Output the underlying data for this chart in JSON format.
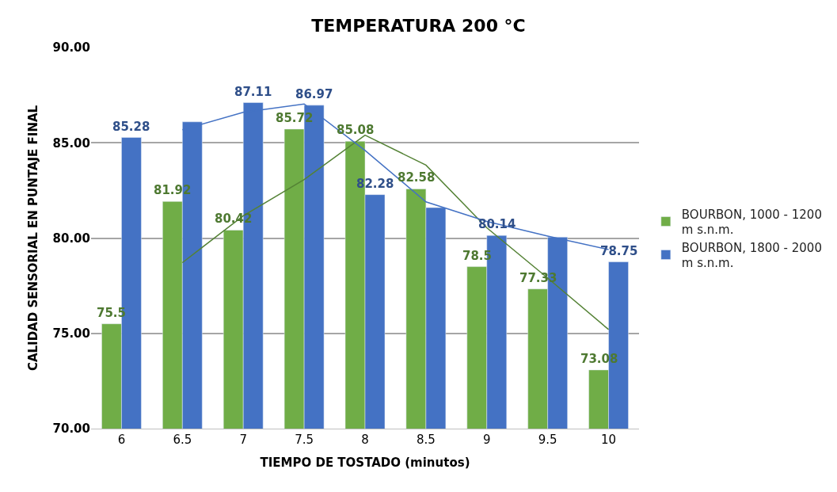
{
  "chart_data": {
    "type": "bar",
    "title": "TEMPERATURA 200 °C",
    "xlabel": "TIEMPO DE TOSTADO (minutos)",
    "ylabel": "CALIDAD SENSORIAL EN PUNTAJE FINAL",
    "categories": [
      "6",
      "6.5",
      "7",
      "7.5",
      "8",
      "8.5",
      "9",
      "9.5",
      "10"
    ],
    "series": [
      {
        "name": "BOURBON, 1000 - 1200 m s.n.m.",
        "color": "#70ad47",
        "values": [
          75.5,
          81.92,
          80.42,
          85.72,
          85.08,
          82.58,
          78.5,
          77.33,
          73.08
        ],
        "value_labels": [
          "75.5",
          "81.92",
          "80.42",
          "85.72",
          "85.08",
          "82.58",
          "78.5",
          "77.33",
          "73.08"
        ]
      },
      {
        "name": "BOURBON, 1800 - 2000 m s.n.m.",
        "color": "#4472c4",
        "values": [
          85.28,
          86.1,
          87.11,
          86.97,
          82.28,
          81.6,
          80.14,
          80.05,
          78.75
        ],
        "value_labels": [
          "85.28",
          null,
          "87.11",
          "86.97",
          "82.28",
          null,
          "80.14",
          null,
          "78.75"
        ]
      },
      {
        "type": "line",
        "color": "#548235",
        "values": [
          null,
          78.71,
          81.17,
          83.07,
          85.4,
          83.83,
          80.54,
          77.9,
          75.2
        ]
      },
      {
        "type": "line",
        "color": "#4472c4",
        "values": [
          null,
          85.69,
          86.6,
          87.04,
          84.6,
          81.9,
          80.87,
          80.1,
          79.4
        ]
      }
    ],
    "ylim": [
      70,
      90
    ],
    "yticks": [
      {
        "value": 70,
        "label": "70.00"
      },
      {
        "value": 75,
        "label": "75.00"
      },
      {
        "value": 80,
        "label": "80.00"
      },
      {
        "value": 85,
        "label": "85.00"
      },
      {
        "value": 90,
        "label": "90.00"
      }
    ],
    "grid": "y",
    "legend": "right",
    "marker": "none",
    "line_style": "solid"
  }
}
